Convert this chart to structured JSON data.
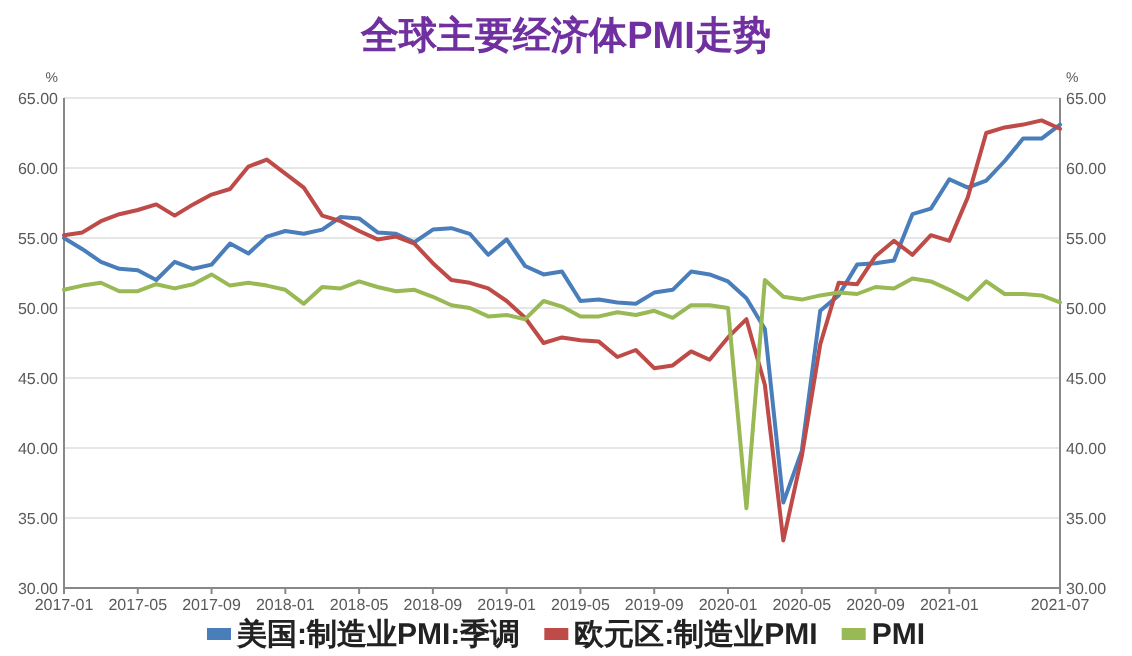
{
  "chart_data": {
    "type": "line",
    "title": "全球主要经济体PMI走势",
    "ylabel": "%",
    "y2label": "%",
    "x": [
      "2017-01",
      "2017-02",
      "2017-03",
      "2017-04",
      "2017-05",
      "2017-06",
      "2017-07",
      "2017-08",
      "2017-09",
      "2017-10",
      "2017-11",
      "2017-12",
      "2018-01",
      "2018-02",
      "2018-03",
      "2018-04",
      "2018-05",
      "2018-06",
      "2018-07",
      "2018-08",
      "2018-09",
      "2018-10",
      "2018-11",
      "2018-12",
      "2019-01",
      "2019-02",
      "2019-03",
      "2019-04",
      "2019-05",
      "2019-06",
      "2019-07",
      "2019-08",
      "2019-09",
      "2019-10",
      "2019-11",
      "2019-12",
      "2020-01",
      "2020-02",
      "2020-03",
      "2020-04",
      "2020-05",
      "2020-06",
      "2020-07",
      "2020-08",
      "2020-09",
      "2020-10",
      "2020-11",
      "2020-12",
      "2021-01",
      "2021-02",
      "2021-03",
      "2021-04",
      "2021-05",
      "2021-06",
      "2021-07"
    ],
    "series": [
      {
        "name": "美国:制造业PMI:季调",
        "color": "#4a7ebb",
        "values": [
          55.0,
          54.2,
          53.3,
          52.8,
          52.7,
          52.0,
          53.3,
          52.8,
          53.1,
          54.6,
          53.9,
          55.1,
          55.5,
          55.3,
          55.6,
          56.5,
          56.4,
          55.4,
          55.3,
          54.7,
          55.6,
          55.7,
          55.3,
          53.8,
          54.9,
          53.0,
          52.4,
          52.6,
          50.5,
          50.6,
          50.4,
          50.3,
          51.1,
          51.3,
          52.6,
          52.4,
          51.9,
          50.7,
          48.5,
          36.1,
          39.8,
          49.8,
          50.9,
          53.1,
          53.2,
          53.4,
          56.7,
          57.1,
          59.2,
          58.6,
          59.1,
          60.5,
          62.1,
          62.1,
          63.1
        ]
      },
      {
        "name": "欧元区:制造业PMI",
        "color": "#be4b48",
        "values": [
          55.2,
          55.4,
          56.2,
          56.7,
          57.0,
          57.4,
          56.6,
          57.4,
          58.1,
          58.5,
          60.1,
          60.6,
          59.6,
          58.6,
          56.6,
          56.2,
          55.5,
          54.9,
          55.1,
          54.6,
          53.2,
          52.0,
          51.8,
          51.4,
          50.5,
          49.3,
          47.5,
          47.9,
          47.7,
          47.6,
          46.5,
          47.0,
          45.7,
          45.9,
          46.9,
          46.3,
          47.9,
          49.2,
          44.5,
          33.4,
          39.4,
          47.4,
          51.8,
          51.7,
          53.7,
          54.8,
          53.8,
          55.2,
          54.8,
          57.9,
          62.5,
          62.9,
          63.1,
          63.4,
          62.8
        ]
      },
      {
        "name": "PMI",
        "color": "#98b954",
        "values": [
          51.3,
          51.6,
          51.8,
          51.2,
          51.2,
          51.7,
          51.4,
          51.7,
          52.4,
          51.6,
          51.8,
          51.6,
          51.3,
          50.3,
          51.5,
          51.4,
          51.9,
          51.5,
          51.2,
          51.3,
          50.8,
          50.2,
          50.0,
          49.4,
          49.5,
          49.2,
          50.5,
          50.1,
          49.4,
          49.4,
          49.7,
          49.5,
          49.8,
          49.3,
          50.2,
          50.2,
          50.0,
          35.7,
          52.0,
          50.8,
          50.6,
          50.9,
          51.1,
          51.0,
          51.5,
          51.4,
          52.1,
          51.9,
          51.3,
          50.6,
          51.9,
          51.0,
          51.0,
          50.9,
          50.4
        ]
      }
    ],
    "xlim": [
      "2017-01",
      "2021-07"
    ],
    "xticks": [
      "2017-01",
      "2017-05",
      "2017-09",
      "2018-01",
      "2018-05",
      "2018-09",
      "2019-01",
      "2019-05",
      "2019-09",
      "2020-01",
      "2020-05",
      "2020-09",
      "2021-01",
      "2021-07"
    ],
    "ylim": [
      30,
      65
    ],
    "yticks": [
      {
        "value": 30,
        "label": "30.00"
      },
      {
        "value": 35,
        "label": "35.00"
      },
      {
        "value": 40,
        "label": "40.00"
      },
      {
        "value": 45,
        "label": "45.00"
      },
      {
        "value": 50,
        "label": "50.00"
      },
      {
        "value": 55,
        "label": "55.00"
      },
      {
        "value": 60,
        "label": "60.00"
      },
      {
        "value": 65,
        "label": "65.00"
      }
    ],
    "y2lim": [
      30,
      65
    ],
    "y2ticks": [
      {
        "value": 30,
        "label": "30.00"
      },
      {
        "value": 35,
        "label": "35.00"
      },
      {
        "value": 40,
        "label": "40.00"
      },
      {
        "value": 45,
        "label": "45.00"
      },
      {
        "value": 50,
        "label": "50.00"
      },
      {
        "value": 55,
        "label": "55.00"
      },
      {
        "value": 60,
        "label": "60.00"
      },
      {
        "value": 65,
        "label": "65.00"
      }
    ],
    "grid": "y",
    "legend": "bottom",
    "line_style": "solid",
    "marker": "none"
  }
}
